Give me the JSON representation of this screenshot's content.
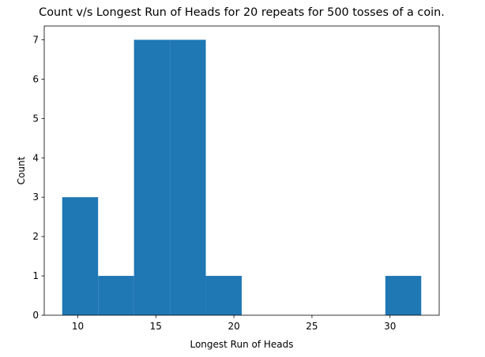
{
  "chart_data": {
    "type": "bar",
    "title": "Count v/s Longest Run of Heads for 20 repeats for 500 tosses of a coin.",
    "xlabel": "Longest Run of Heads",
    "ylabel": "Count",
    "xlim": [
      7.85,
      33.15
    ],
    "ylim": [
      0,
      7.35
    ],
    "xticks": [
      10,
      15,
      20,
      25,
      30
    ],
    "yticks": [
      0,
      1,
      2,
      3,
      4,
      5,
      6,
      7
    ],
    "bin_edges": [
      9.0,
      11.3,
      13.6,
      15.9,
      18.2,
      20.5,
      22.8,
      25.1,
      27.4,
      29.7,
      32.0
    ],
    "counts": [
      3,
      1,
      7,
      7,
      1,
      0,
      0,
      0,
      0,
      1
    ],
    "bar_color": "#1f77b4",
    "grid": false
  }
}
